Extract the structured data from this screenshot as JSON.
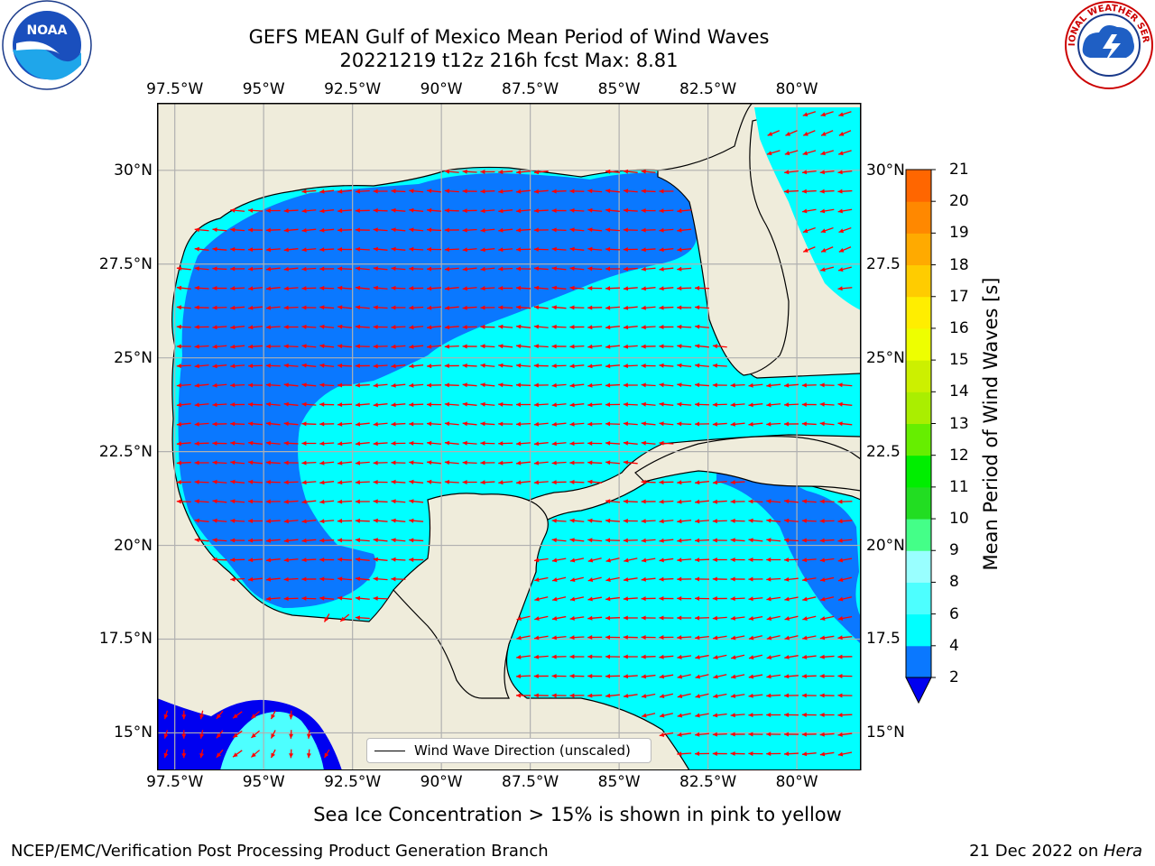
{
  "title": {
    "line1": "GEFS MEAN Gulf of Mexico Mean Period of Wind Waves",
    "line2": "20221219 t12z 216h fcst   Max: 8.81"
  },
  "logos": {
    "left_text": "NOAA",
    "right_text": "NATIONAL WEATHER SERVICE"
  },
  "map": {
    "lon_ticks": [
      "97.5°W",
      "95°W",
      "92.5°W",
      "90°W",
      "87.5°W",
      "85°W",
      "82.5°W",
      "80°W"
    ],
    "lat_ticks_left": [
      "30°N",
      "27.5°N",
      "25°N",
      "22.5°N",
      "20°N",
      "17.5°N",
      "15°N"
    ],
    "lat_ticks_right": [
      "30°N",
      "27.5",
      "25°N",
      "22.5",
      "20°N",
      "17.5",
      "15°N"
    ],
    "extent": {
      "lon": [
        -98,
        -78.2
      ],
      "lat": [
        14,
        31.8
      ]
    },
    "land_color": "#efecdb",
    "arrow_color": "#ff0000",
    "legend_label": "Wind Wave Direction (unscaled)",
    "wave_direction_note": "arrows point mostly westward"
  },
  "colorbar": {
    "label": "Mean Period of Wind Waves [s]",
    "ticks": [
      "21",
      "20",
      "19",
      "18",
      "17",
      "16",
      "15",
      "14",
      "13",
      "12",
      "11",
      "10",
      "9",
      "8",
      "6",
      "4",
      "2"
    ],
    "colors": [
      "#0000f0",
      "#0a78ff",
      "#00ffff",
      "#4dffff",
      "#99ffff",
      "#44ff88",
      "#22dd22",
      "#00ee00",
      "#66ee00",
      "#aaee00",
      "#ccf000",
      "#eeff00",
      "#ffee00",
      "#ffcc00",
      "#ffaa00",
      "#ff8800",
      "#ff6600",
      "#ff4400",
      "#ff2200",
      "#ff0000"
    ]
  },
  "footnote": "Sea Ice Concentration > 15% is shown in pink to yellow",
  "footer": {
    "left": "NCEP/EMC/Verification Post Processing Product Generation Branch",
    "right_prefix": "21 Dec 2022 on ",
    "right_italic": "Hera"
  }
}
